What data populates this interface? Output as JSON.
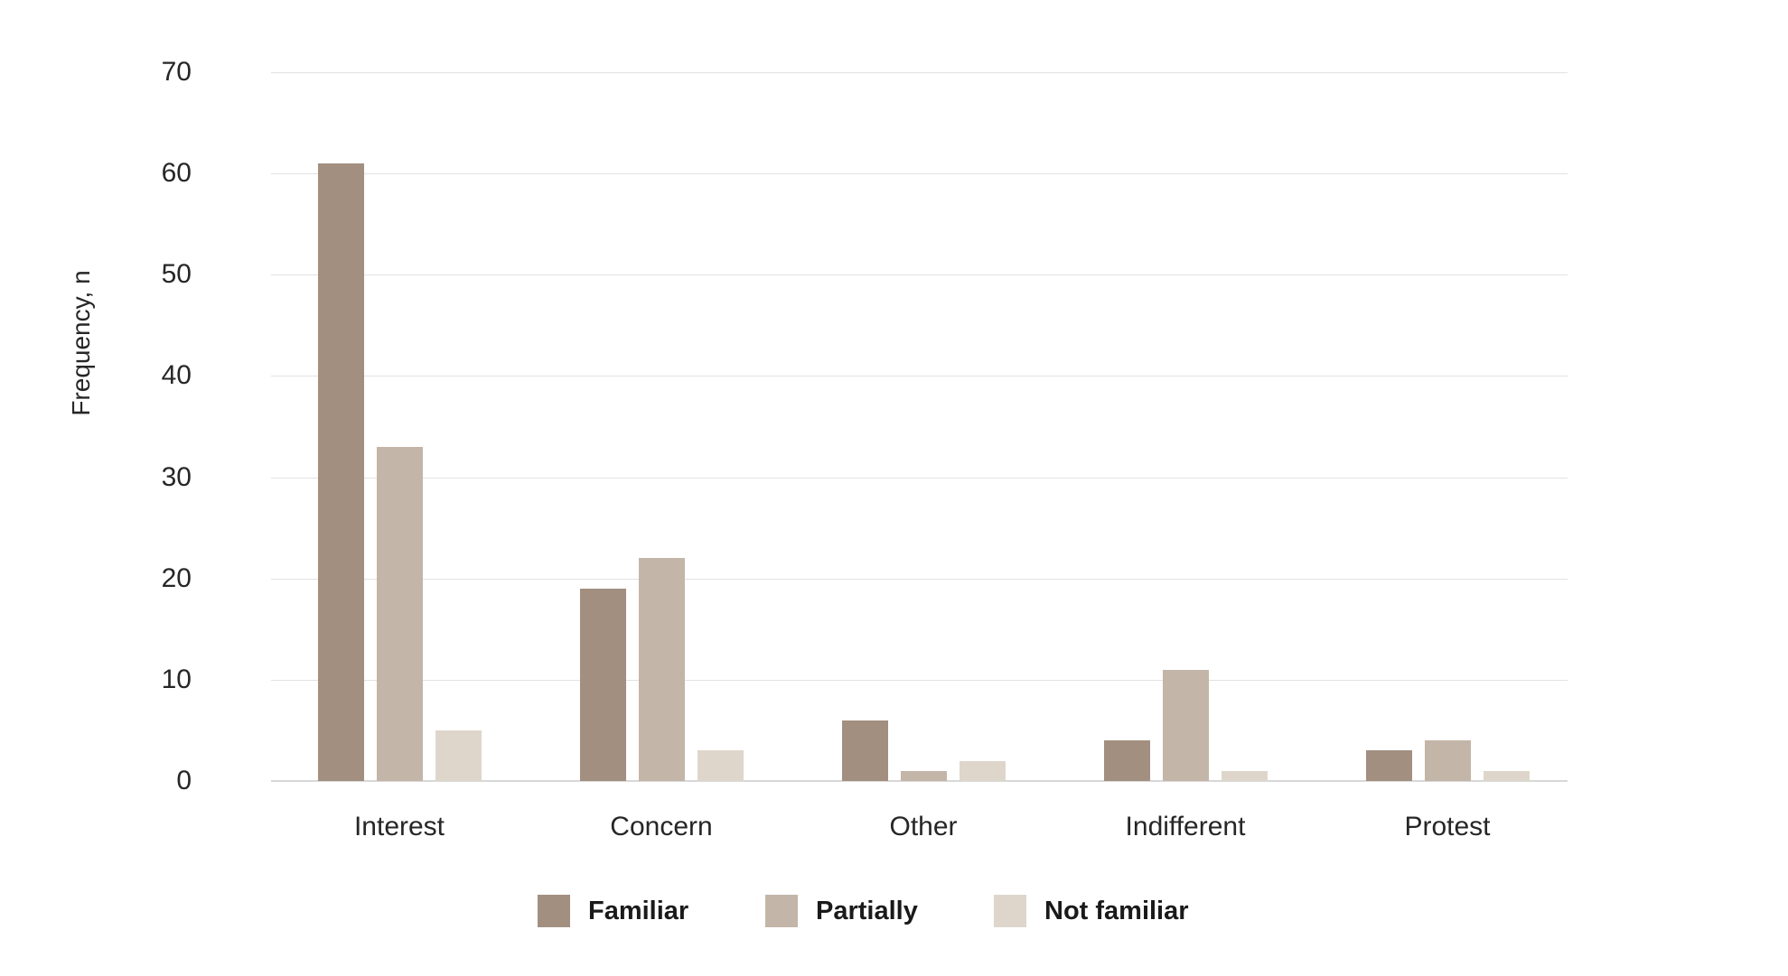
{
  "chart_data": {
    "type": "bar",
    "title": "",
    "xlabel": "",
    "ylabel": "Frequency, n",
    "categories": [
      "Interest",
      "Concern",
      "Other",
      "Indifferent",
      "Protest"
    ],
    "series": [
      {
        "name": "Familiar",
        "color": "#a28f80",
        "values": [
          61,
          19,
          6,
          4,
          3
        ]
      },
      {
        "name": "Partially",
        "color": "#c3b5a8",
        "values": [
          33,
          22,
          1,
          11,
          4
        ]
      },
      {
        "name": "Not familiar",
        "color": "#ded6cb",
        "values": [
          5,
          3,
          2,
          1,
          1
        ]
      }
    ],
    "ylim": [
      0,
      70
    ],
    "yticks": [
      0,
      10,
      20,
      30,
      40,
      50,
      60,
      70
    ],
    "grid": true,
    "legend_position": "bottom"
  },
  "colors": {
    "background": "#ffffff",
    "gridline": "#e2e2e2",
    "axis_line": "#d8d8d8",
    "text": "#262626"
  }
}
